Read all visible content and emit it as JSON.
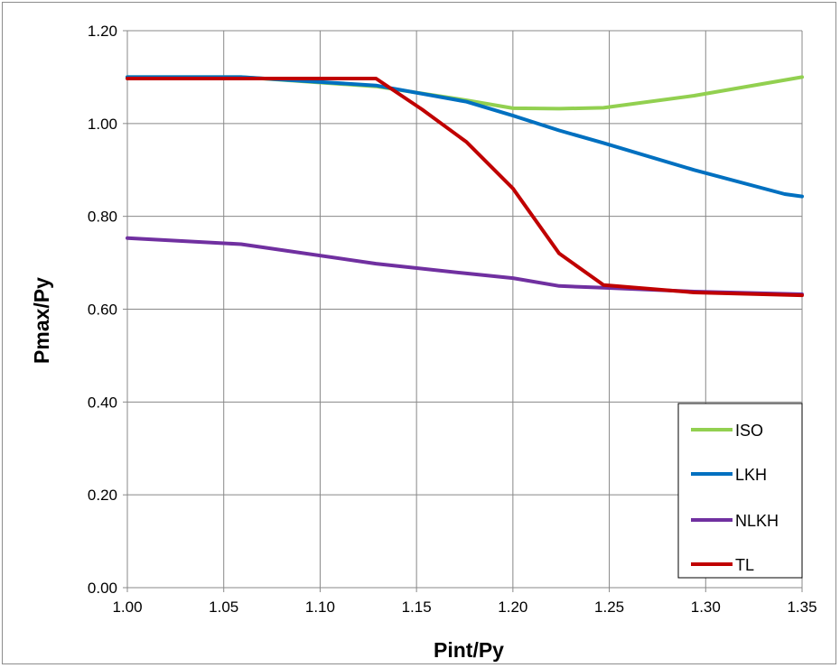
{
  "chart_data": {
    "type": "line",
    "title": "",
    "xlabel": "Pint/Py",
    "ylabel": "Pmax/Py",
    "xlim": [
      1.0,
      1.35
    ],
    "ylim": [
      0.0,
      1.2
    ],
    "x_ticks": [
      "1.00",
      "1.05",
      "1.10",
      "1.15",
      "1.20",
      "1.25",
      "1.30",
      "1.35"
    ],
    "y_ticks": [
      "0.00",
      "0.20",
      "0.40",
      "0.60",
      "0.80",
      "1.00",
      "1.20"
    ],
    "grid": true,
    "legend_position": "bottom-right",
    "series": [
      {
        "name": "ISO",
        "color": "#92d050",
        "x": [
          1.0,
          1.059,
          1.129,
          1.176,
          1.2,
          1.224,
          1.247,
          1.294,
          1.35
        ],
        "y": [
          1.1,
          1.1,
          1.08,
          1.05,
          1.033,
          1.032,
          1.034,
          1.06,
          1.1
        ]
      },
      {
        "name": "LKH",
        "color": "#0070c0",
        "x": [
          1.0,
          1.059,
          1.129,
          1.176,
          1.2,
          1.224,
          1.247,
          1.294,
          1.341,
          1.35
        ],
        "y": [
          1.1,
          1.1,
          1.082,
          1.047,
          1.017,
          0.985,
          0.958,
          0.9,
          0.848,
          0.843
        ]
      },
      {
        "name": "NLKH",
        "color": "#7030a0",
        "x": [
          1.0,
          1.059,
          1.129,
          1.176,
          1.2,
          1.224,
          1.247,
          1.294,
          1.35
        ],
        "y": [
          0.753,
          0.74,
          0.698,
          0.677,
          0.667,
          0.65,
          0.646,
          0.638,
          0.632
        ]
      },
      {
        "name": "TL",
        "color": "#c00000",
        "x": [
          1.0,
          1.059,
          1.129,
          1.153,
          1.176,
          1.2,
          1.224,
          1.247,
          1.294,
          1.35
        ],
        "y": [
          1.097,
          1.097,
          1.097,
          1.03,
          0.96,
          0.86,
          0.72,
          0.652,
          0.636,
          0.63
        ]
      }
    ]
  }
}
